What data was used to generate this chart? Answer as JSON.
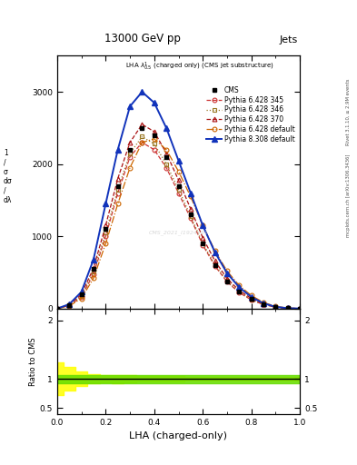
{
  "title_top": "13000 GeV pp",
  "title_right": "Jets",
  "xlabel": "LHA (charged-only)",
  "ylabel_ratio": "Ratio to CMS",
  "right_label_top": "Rivet 3.1.10, ≥ 2.9M events",
  "right_label_bot": "mcplots.cern.ch [arXiv:1306.3436]",
  "watermark": "CMS_2021_I1924191",
  "x_lha": [
    0.0,
    0.05,
    0.1,
    0.15,
    0.2,
    0.25,
    0.3,
    0.35,
    0.4,
    0.45,
    0.5,
    0.55,
    0.6,
    0.65,
    0.7,
    0.75,
    0.8,
    0.85,
    0.9,
    0.95,
    1.0
  ],
  "cms_y": [
    0,
    50,
    200,
    550,
    1100,
    1700,
    2200,
    2500,
    2400,
    2100,
    1700,
    1300,
    900,
    600,
    380,
    230,
    130,
    60,
    20,
    5,
    0
  ],
  "p6_345_y": [
    0,
    40,
    160,
    480,
    1000,
    1600,
    2100,
    2300,
    2200,
    1950,
    1600,
    1250,
    880,
    590,
    370,
    220,
    120,
    55,
    18,
    4,
    0
  ],
  "p6_346_y": [
    0,
    45,
    175,
    510,
    1050,
    1650,
    2150,
    2380,
    2280,
    2000,
    1650,
    1280,
    900,
    610,
    385,
    230,
    125,
    58,
    20,
    5,
    0
  ],
  "p6_370_y": [
    0,
    55,
    195,
    560,
    1150,
    1800,
    2300,
    2550,
    2450,
    2150,
    1780,
    1380,
    980,
    660,
    415,
    250,
    140,
    65,
    22,
    6,
    0
  ],
  "p6_def_y": [
    0,
    35,
    140,
    420,
    900,
    1450,
    1950,
    2300,
    2350,
    2200,
    1900,
    1550,
    1150,
    800,
    520,
    320,
    180,
    85,
    30,
    7,
    0
  ],
  "p8_def_y": [
    0,
    60,
    230,
    680,
    1450,
    2200,
    2800,
    3000,
    2850,
    2500,
    2050,
    1600,
    1150,
    780,
    490,
    295,
    160,
    72,
    24,
    5,
    0
  ],
  "cms_color": "#000000",
  "p6_345_color": "#cc3333",
  "p6_346_color": "#997722",
  "p6_370_color": "#aa1111",
  "p6_def_color": "#cc6600",
  "p8_def_color": "#1133bb",
  "ylim_main": [
    0,
    3500
  ],
  "yticks_main": [
    0,
    1000,
    2000,
    3000
  ],
  "ratio_ylim": [
    0.4,
    2.2
  ],
  "ratio_yticks": [
    0.5,
    1.0,
    2.0
  ],
  "ratio_green_lo": 0.93,
  "ratio_green_hi": 1.07,
  "ratio_yellow_lo": [
    0.72,
    0.8,
    0.87,
    0.92,
    0.94,
    0.93,
    0.94,
    0.95,
    0.96,
    0.96,
    0.96,
    0.97,
    0.97,
    0.97,
    0.97,
    0.97,
    0.97,
    0.97,
    0.97,
    0.97,
    0.97
  ],
  "ratio_yellow_hi": [
    1.28,
    1.2,
    1.13,
    1.08,
    1.06,
    1.07,
    1.06,
    1.05,
    1.04,
    1.04,
    1.04,
    1.03,
    1.03,
    1.03,
    1.03,
    1.03,
    1.03,
    1.03,
    1.03,
    1.03,
    1.03
  ]
}
